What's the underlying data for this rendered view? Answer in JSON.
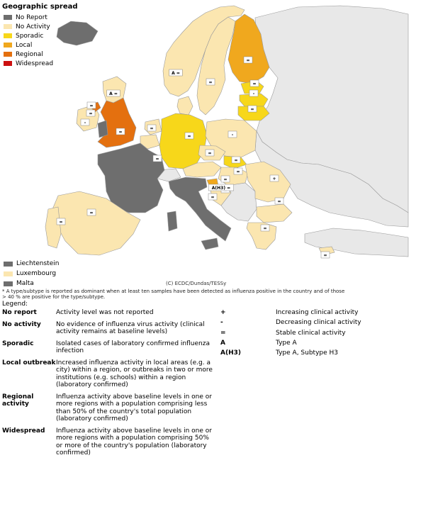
{
  "title": "Geographic spread",
  "colors": {
    "no_report": "#6e6e6e",
    "no_activity": "#fbe6b0",
    "sporadic": "#f7d71a",
    "local": "#f0a81e",
    "regional": "#e4700f",
    "widespread": "#cc1010",
    "non_eu": "#e8e8e8",
    "sea": "#ffffff",
    "border": "#9a9a9a"
  },
  "legend_top": [
    {
      "label": "No Report",
      "color_key": "no_report"
    },
    {
      "label": "No Activity",
      "color_key": "no_activity"
    },
    {
      "label": "Sporadic",
      "color_key": "sporadic"
    },
    {
      "label": "Local",
      "color_key": "local"
    },
    {
      "label": "Regional",
      "color_key": "regional"
    },
    {
      "label": "Widespread",
      "color_key": "widespread"
    }
  ],
  "small_countries": [
    {
      "label": "Liechtenstein",
      "color_key": "no_report"
    },
    {
      "label": "Luxembourg",
      "color_key": "no_activity"
    },
    {
      "label": "Malta",
      "color_key": "no_report"
    }
  ],
  "map_labels": [
    {
      "text": "A ="
    },
    {
      "text": "="
    },
    {
      "text": "="
    },
    {
      "text": "A ="
    },
    {
      "text": "="
    },
    {
      "text": "="
    },
    {
      "text": "-"
    },
    {
      "text": "="
    },
    {
      "text": "="
    },
    {
      "text": "="
    },
    {
      "text": "-"
    },
    {
      "text": "="
    },
    {
      "text": "="
    },
    {
      "text": "="
    },
    {
      "text": "-"
    },
    {
      "text": "="
    },
    {
      "text": "="
    },
    {
      "text": "="
    },
    {
      "text": "="
    },
    {
      "text": "="
    },
    {
      "text": "+"
    },
    {
      "text": "A(H3) ="
    },
    {
      "text": "="
    },
    {
      "text": "="
    },
    {
      "text": "="
    },
    {
      "text": "="
    },
    {
      "text": "="
    },
    {
      "text": "="
    }
  ],
  "copyright": "(C) ECDC/Dundas/TESSy",
  "footnote": "* A type/subtype is reported as dominant when at least ten samples have been detected as influenza positive in the country and of those > 40 %  are positive for the type/subtype.",
  "legend_label": "Legend:",
  "legend_rows": [
    {
      "term": "No report",
      "desc": "Activity level was not reported"
    },
    {
      "term": "No activity",
      "desc": "No evidence of influenza virus activity (clinical activity remains at baseline levels)"
    },
    {
      "term": "Sporadic",
      "desc": "Isolated cases of laboratory confirmed influenza infection"
    },
    {
      "term": "Local outbreak",
      "desc": "Increased influenza activity in local areas (e.g. a city) within a region, or outbreaks in two or more institutions (e.g. schools) within a region (laboratory confirmed)"
    },
    {
      "term": "Regional activity",
      "desc": "Influenza activity above baseline levels in one or more regions with a population comprising less than 50% of the country's total population (laboratory confirmed)"
    },
    {
      "term": "Widespread",
      "desc": "Influenza activity above baseline levels in one or more regions with a population comprising 50% or more of the country's population (laboratory confirmed)"
    }
  ],
  "symbol_rows": [
    {
      "sym": "+",
      "desc": "Increasing clinical activity"
    },
    {
      "sym": "-",
      "desc": "Decreasing clinical activity"
    },
    {
      "sym": "=",
      "desc": "Stable clinical activity"
    },
    {
      "sym": "A",
      "desc": "Type A"
    },
    {
      "sym": "A(H3)",
      "desc": "Type A, Subtype H3"
    }
  ]
}
